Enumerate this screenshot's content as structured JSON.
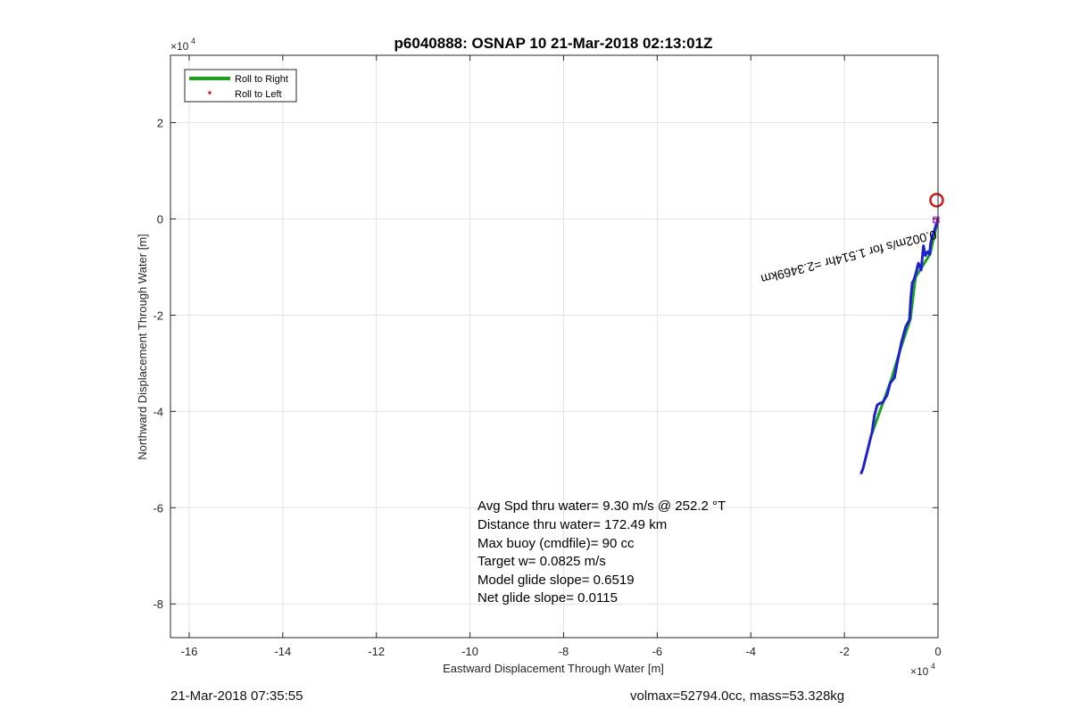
{
  "chart_data": {
    "type": "line",
    "title": "p6040888: OSNAP 10 21-Mar-2018 02:13:01Z",
    "xlabel": "Eastward Displacement Through Water [m]",
    "ylabel": "Northward Displacement Through Water [m]",
    "xlim": [
      -164000,
      0
    ],
    "ylim": [
      -87000,
      34000
    ],
    "x_exponent_label": "×10",
    "y_exponent_label": "×10",
    "exponent": "4",
    "x_ticks": [
      -160000,
      -140000,
      -120000,
      -100000,
      -80000,
      -60000,
      -40000,
      -20000,
      0
    ],
    "x_tick_labels": [
      "-16",
      "-14",
      "-12",
      "-10",
      "-8",
      "-6",
      "-4",
      "-2",
      "0"
    ],
    "y_ticks": [
      -80000,
      -60000,
      -40000,
      -20000,
      0,
      20000
    ],
    "y_tick_labels": [
      "-8",
      "-6",
      "-4",
      "-2",
      "0",
      "2"
    ],
    "grid": true,
    "legend_position": "top-left",
    "legend": [
      {
        "label": "Roll to Right",
        "color": "#1aa31a",
        "style": "line"
      },
      {
        "label": "Roll to Left",
        "color": "#e8191b",
        "style": "dot"
      }
    ],
    "series": [
      {
        "name": "Roll to Right",
        "color": "#1aa31a",
        "x": [
          0,
          -1700,
          -4800,
          -5900,
          -8000,
          -10000,
          -14100
        ],
        "y": [
          0,
          -7300,
          -12100,
          -20800,
          -27000,
          -33400,
          -44500
        ]
      },
      {
        "color": "#1f1fd6",
        "x": [
          0,
          -400,
          -800,
          -1200,
          -1600,
          -1800,
          -2200,
          -2700,
          -3100,
          -3600,
          -4200,
          -4800,
          -5200,
          -5500,
          -5800,
          -6100,
          -6900,
          -7800,
          -8700,
          -9300,
          -10200,
          -10900,
          -11800,
          -12600,
          -13000,
          -13600,
          -14100,
          -14500,
          -15100,
          -15600,
          -16000,
          -16400
        ],
        "y": [
          0,
          -1200,
          -2500,
          -3500,
          -5200,
          -7400,
          -6800,
          -7600,
          -5600,
          -10600,
          -9200,
          -11600,
          -12800,
          -13200,
          -16200,
          -21000,
          -22400,
          -25600,
          -29800,
          -33000,
          -34100,
          -36700,
          -38100,
          -38400,
          -38700,
          -40900,
          -44300,
          -45800,
          -48300,
          -50200,
          -51800,
          -52800
        ]
      }
    ],
    "markers": [
      {
        "type": "circle",
        "x": -300,
        "y": 3900,
        "color": "#d01a1a"
      },
      {
        "type": "square",
        "x": -400,
        "y": -200,
        "color": "#d01ad0"
      }
    ],
    "annotations": {
      "stats": [
        "Avg Spd thru water=  9.30 m/s @ 252.2 °T",
        "Distance thru water= 172.49 km",
        "Max buoy (cmdfile)= 90 cc",
        "Target w= 0.0825 m/s",
        "Model glide slope= 0.6519",
        "Net glide slope= 0.0115"
      ],
      "current_label": "0.002m/s for 1.514hr =2.3469km"
    }
  },
  "footer": {
    "left": "21-Mar-2018 07:35:55",
    "right": "volmax=52794.0cc, mass=53.328kg"
  }
}
